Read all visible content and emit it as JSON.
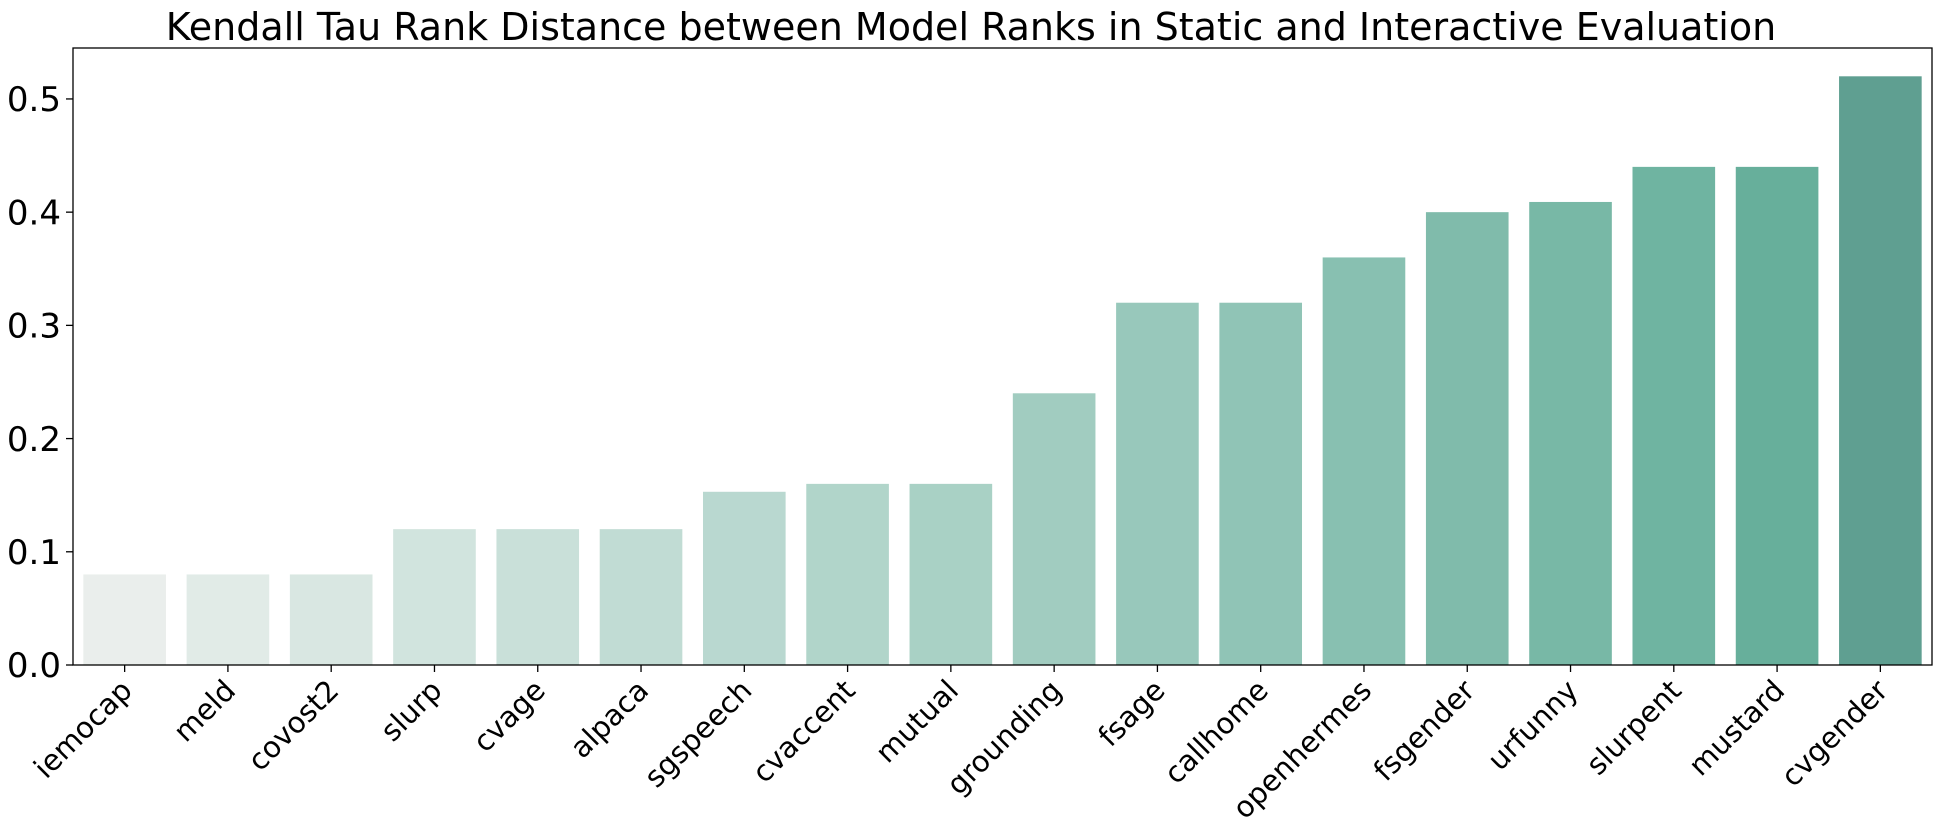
{
  "chart_data": {
    "type": "bar",
    "title": "Kendall Tau Rank Distance between Model Ranks in Static and Interactive Evaluation",
    "xlabel": "",
    "ylabel": "",
    "ylim": [
      0,
      0.545
    ],
    "yticks": [
      "0.0",
      "0.1",
      "0.2",
      "0.3",
      "0.4",
      "0.5"
    ],
    "grid": false,
    "categories": [
      "iemocap",
      "meld",
      "covost2",
      "slurp",
      "cvage",
      "alpaca",
      "sgspeech",
      "cvaccent",
      "mutual",
      "grounding",
      "fsage",
      "callhome",
      "openhermes",
      "fsgender",
      "urfunny",
      "slurpent",
      "mustard",
      "cvgender"
    ],
    "values": [
      0.08,
      0.08,
      0.08,
      0.12,
      0.12,
      0.12,
      0.153,
      0.16,
      0.16,
      0.24,
      0.32,
      0.32,
      0.36,
      0.4,
      0.409,
      0.44,
      0.44,
      0.52
    ],
    "colors": [
      "#eaeeec",
      "#e1ebe7",
      "#d9e7e2",
      "#d1e4de",
      "#c9e0d9",
      "#c1dcd4",
      "#b9d8d0",
      "#b1d5ca",
      "#a9d1c5",
      "#a1ccc0",
      "#98c8bb",
      "#90c4b6",
      "#88c0b1",
      "#80bbab",
      "#78b8a6",
      "#6fb4a1",
      "#67af9b",
      "#5f9f91"
    ]
  }
}
